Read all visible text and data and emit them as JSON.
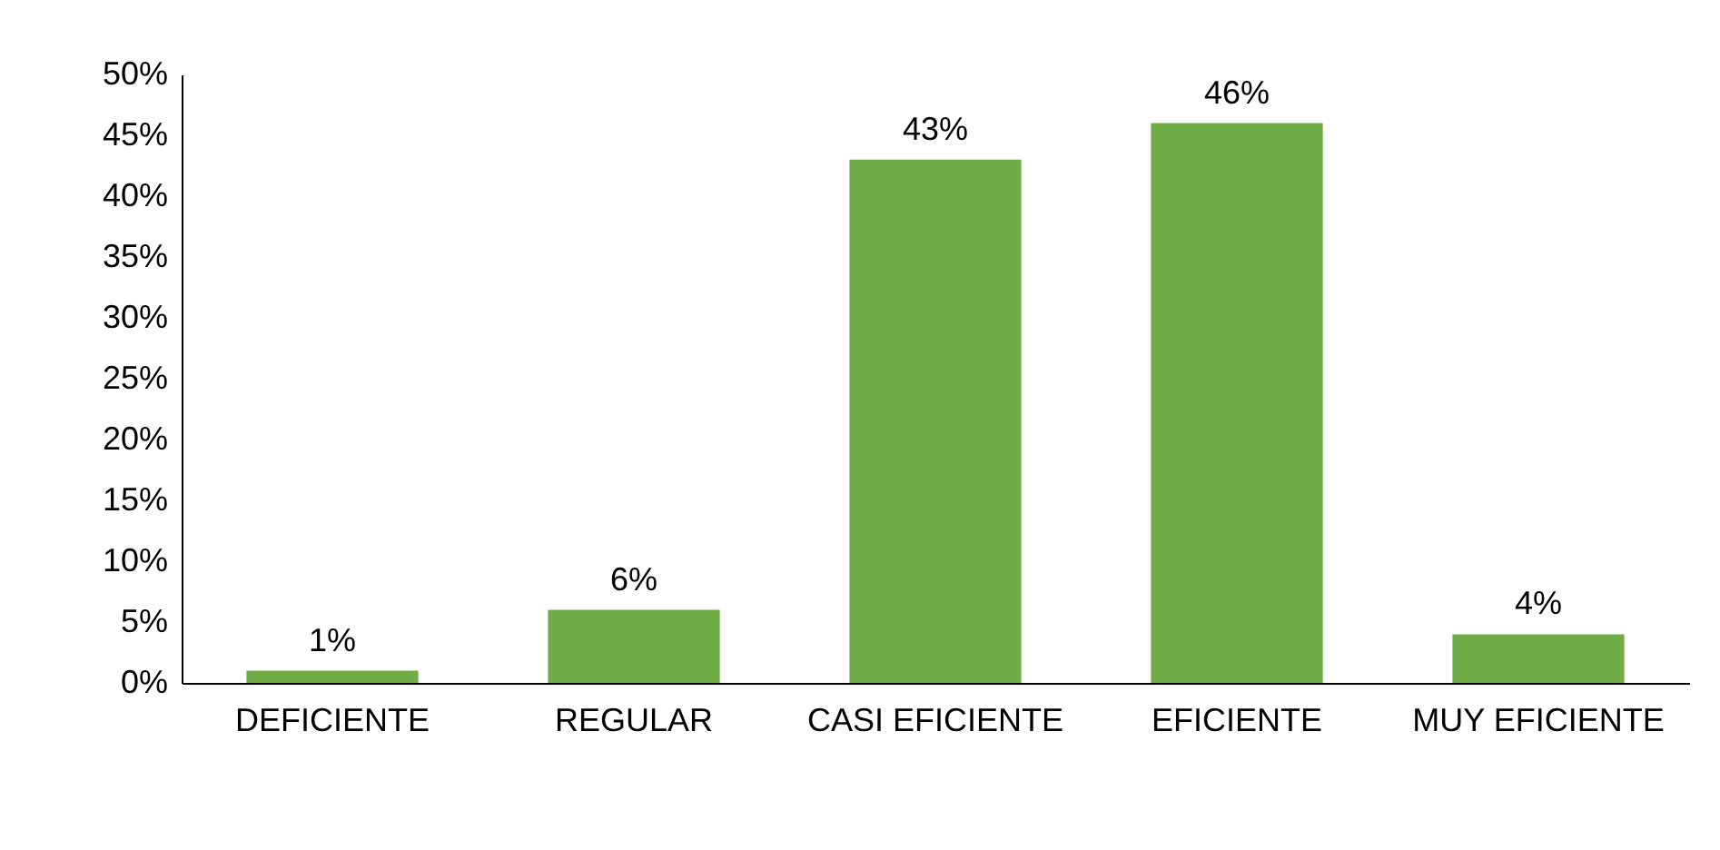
{
  "chart_data": {
    "type": "bar",
    "categories": [
      "DEFICIENTE",
      "REGULAR",
      "CASI EFICIENTE",
      "EFICIENTE",
      "MUY EFICIENTE"
    ],
    "values": [
      1,
      6,
      43,
      46,
      4
    ],
    "color": "#70ad47",
    "value_labels": [
      "1%",
      "6%",
      "43%",
      "46%",
      "4%"
    ],
    "ylim": [
      0,
      50
    ],
    "yticks": [
      {
        "value": 0,
        "label": "0%"
      },
      {
        "value": 5,
        "label": "5%"
      },
      {
        "value": 10,
        "label": "10%"
      },
      {
        "value": 15,
        "label": "15%"
      },
      {
        "value": 20,
        "label": "20%"
      },
      {
        "value": 25,
        "label": "25%"
      },
      {
        "value": 30,
        "label": "30%"
      },
      {
        "value": 35,
        "label": "35%"
      },
      {
        "value": 40,
        "label": "40%"
      },
      {
        "value": 45,
        "label": "45%"
      },
      {
        "value": 50,
        "label": "50%"
      }
    ]
  }
}
